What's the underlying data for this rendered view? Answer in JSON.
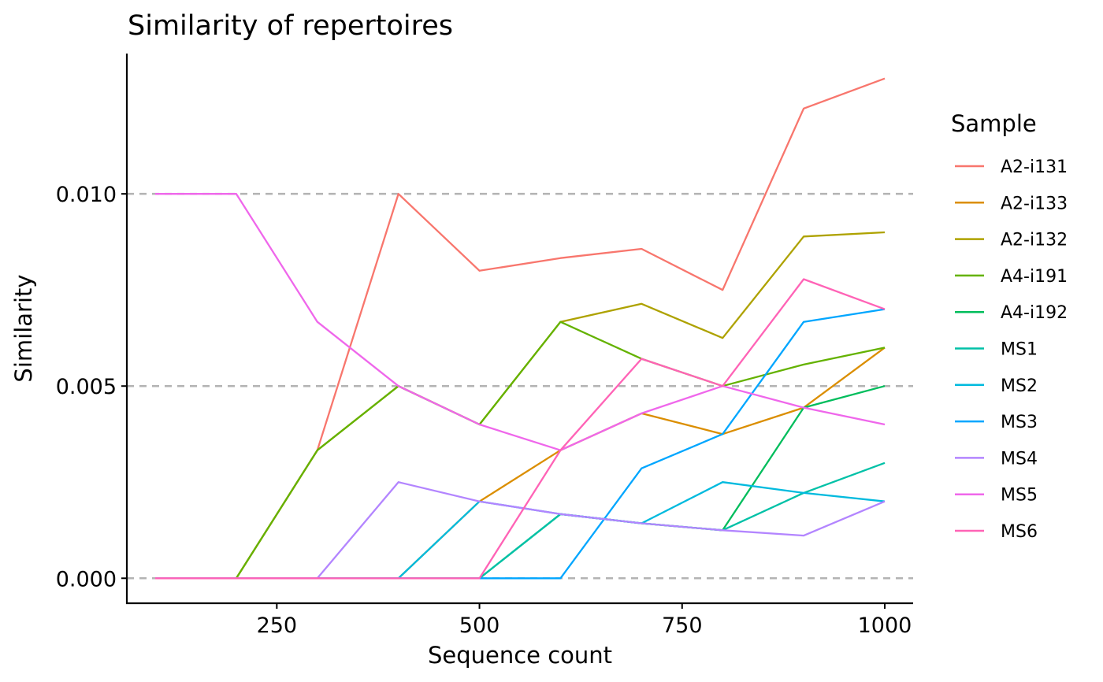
{
  "chart_data": {
    "type": "line",
    "title": "Similarity of repertoires",
    "xlabel": "Sequence count",
    "ylabel": "Similarity",
    "xlim": [
      65,
      1035
    ],
    "ylim": [
      -0.00065,
      0.01365
    ],
    "x_ticks": [
      250,
      500,
      750,
      1000
    ],
    "x_tick_labels": [
      "250",
      "500",
      "750",
      "1000"
    ],
    "y_ticks": [
      0.0,
      0.005,
      0.01
    ],
    "y_tick_labels": [
      "0.000",
      "0.005",
      "0.010"
    ],
    "grid": "horizontal dashed at y ticks",
    "legend_title": "Sample",
    "legend_position": "right",
    "x": [
      100,
      200,
      300,
      400,
      500,
      600,
      700,
      800,
      900,
      1000
    ],
    "series": [
      {
        "name": "A2-i131",
        "color": "#F8766D",
        "values": [
          0,
          0,
          0.00333,
          0.01,
          0.008,
          0.00833,
          0.00857,
          0.0075,
          0.01222,
          0.013
        ]
      },
      {
        "name": "A2-i133",
        "color": "#DB8E00",
        "values": [
          0,
          0,
          0,
          0,
          0.002,
          0.00333,
          0.00429,
          0.00375,
          0.00444,
          0.006
        ]
      },
      {
        "name": "A2-i132",
        "color": "#AEA200",
        "values": [
          0,
          0,
          0.00333,
          0.005,
          0.004,
          0.00667,
          0.00714,
          0.00625,
          0.00889,
          0.009
        ]
      },
      {
        "name": "A4-i191",
        "color": "#64B200",
        "values": [
          0,
          0,
          0.00333,
          0.005,
          0.004,
          0.00667,
          0.00571,
          0.005,
          0.00556,
          0.006
        ]
      },
      {
        "name": "A4-i192",
        "color": "#00BD5C",
        "values": [
          0,
          0,
          0,
          0,
          0,
          0.00167,
          0.00143,
          0.00125,
          0.00444,
          0.005
        ]
      },
      {
        "name": "MS1",
        "color": "#00C1A7",
        "values": [
          0,
          0,
          0,
          0,
          0,
          0.00167,
          0.00143,
          0.00125,
          0.00222,
          0.003
        ]
      },
      {
        "name": "MS2",
        "color": "#00BADE",
        "values": [
          0,
          0,
          0,
          0,
          0.002,
          0.00167,
          0.00143,
          0.0025,
          0.00222,
          0.002
        ]
      },
      {
        "name": "MS3",
        "color": "#00A6FF",
        "values": [
          0,
          0,
          0,
          0,
          0,
          0,
          0.00286,
          0.00375,
          0.00667,
          0.007
        ]
      },
      {
        "name": "MS4",
        "color": "#B385FF",
        "values": [
          0,
          0,
          0,
          0.0025,
          0.002,
          0.00167,
          0.00143,
          0.00125,
          0.00111,
          0.002
        ]
      },
      {
        "name": "MS5",
        "color": "#EF67EB",
        "values": [
          0.01,
          0.01,
          0.00667,
          0.005,
          0.004,
          0.00333,
          0.00429,
          0.005,
          0.00444,
          0.004
        ]
      },
      {
        "name": "MS6",
        "color": "#FF63B6",
        "values": [
          0,
          0,
          0,
          0,
          0,
          0.00333,
          0.00571,
          0.005,
          0.00778,
          0.007
        ]
      }
    ]
  }
}
